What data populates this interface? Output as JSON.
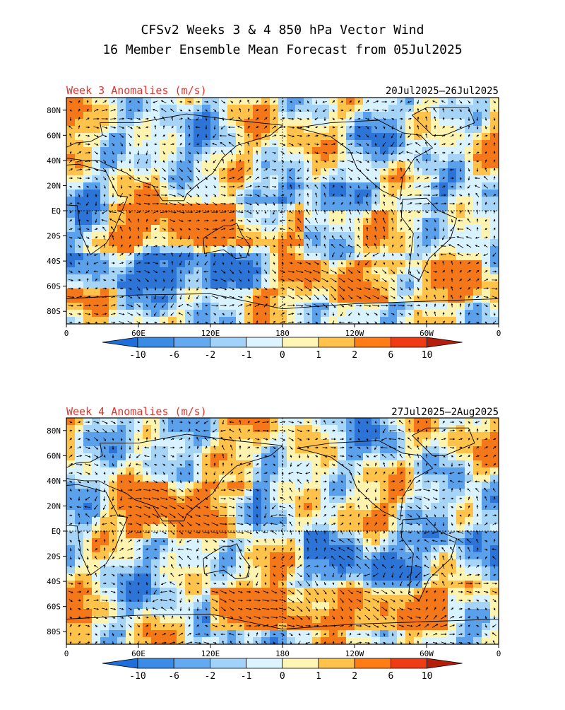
{
  "header": {
    "line1": "CFSv2 Weeks 3 & 4 850 hPa Vector Wind",
    "line2": "16 Member Ensemble Mean Forecast from 05Jul2025"
  },
  "panels": [
    {
      "label": "Week 3 Anomalies (m/s)",
      "dates": "20Jul2025–26Jul2025"
    },
    {
      "label": "Week 4 Anomalies (m/s)",
      "dates": "27Jul2025—2Aug2025"
    }
  ],
  "axes": {
    "lat_labels": [
      "80N",
      "60N",
      "40N",
      "20N",
      "EQ",
      "20S",
      "40S",
      "60S",
      "80S"
    ],
    "lon_labels": [
      "0",
      "60E",
      "120E",
      "180",
      "120W",
      "60W",
      "0"
    ]
  },
  "colorbar": {
    "labels": [
      "-10",
      "-6",
      "-2",
      "-1",
      "0",
      "1",
      "2",
      "6",
      "10"
    ],
    "colors": [
      "#1e6fdc",
      "#3c8ce6",
      "#64aaf0",
      "#a0d2fa",
      "#dcf4ff",
      "#fff5b4",
      "#ffc34b",
      "#ff7d14",
      "#f03c14",
      "#b41e0a"
    ]
  },
  "colors": {
    "title_red": "#e8322a",
    "neg_strong": "#2c74d6",
    "neg_mid": "#5ba0ea",
    "neg_light": "#a6d4f7",
    "neutral_cool": "#d8f2ff",
    "neutral_warm": "#fff3b0",
    "pos_light": "#ffc24a",
    "pos_strong": "#f4781a"
  }
}
